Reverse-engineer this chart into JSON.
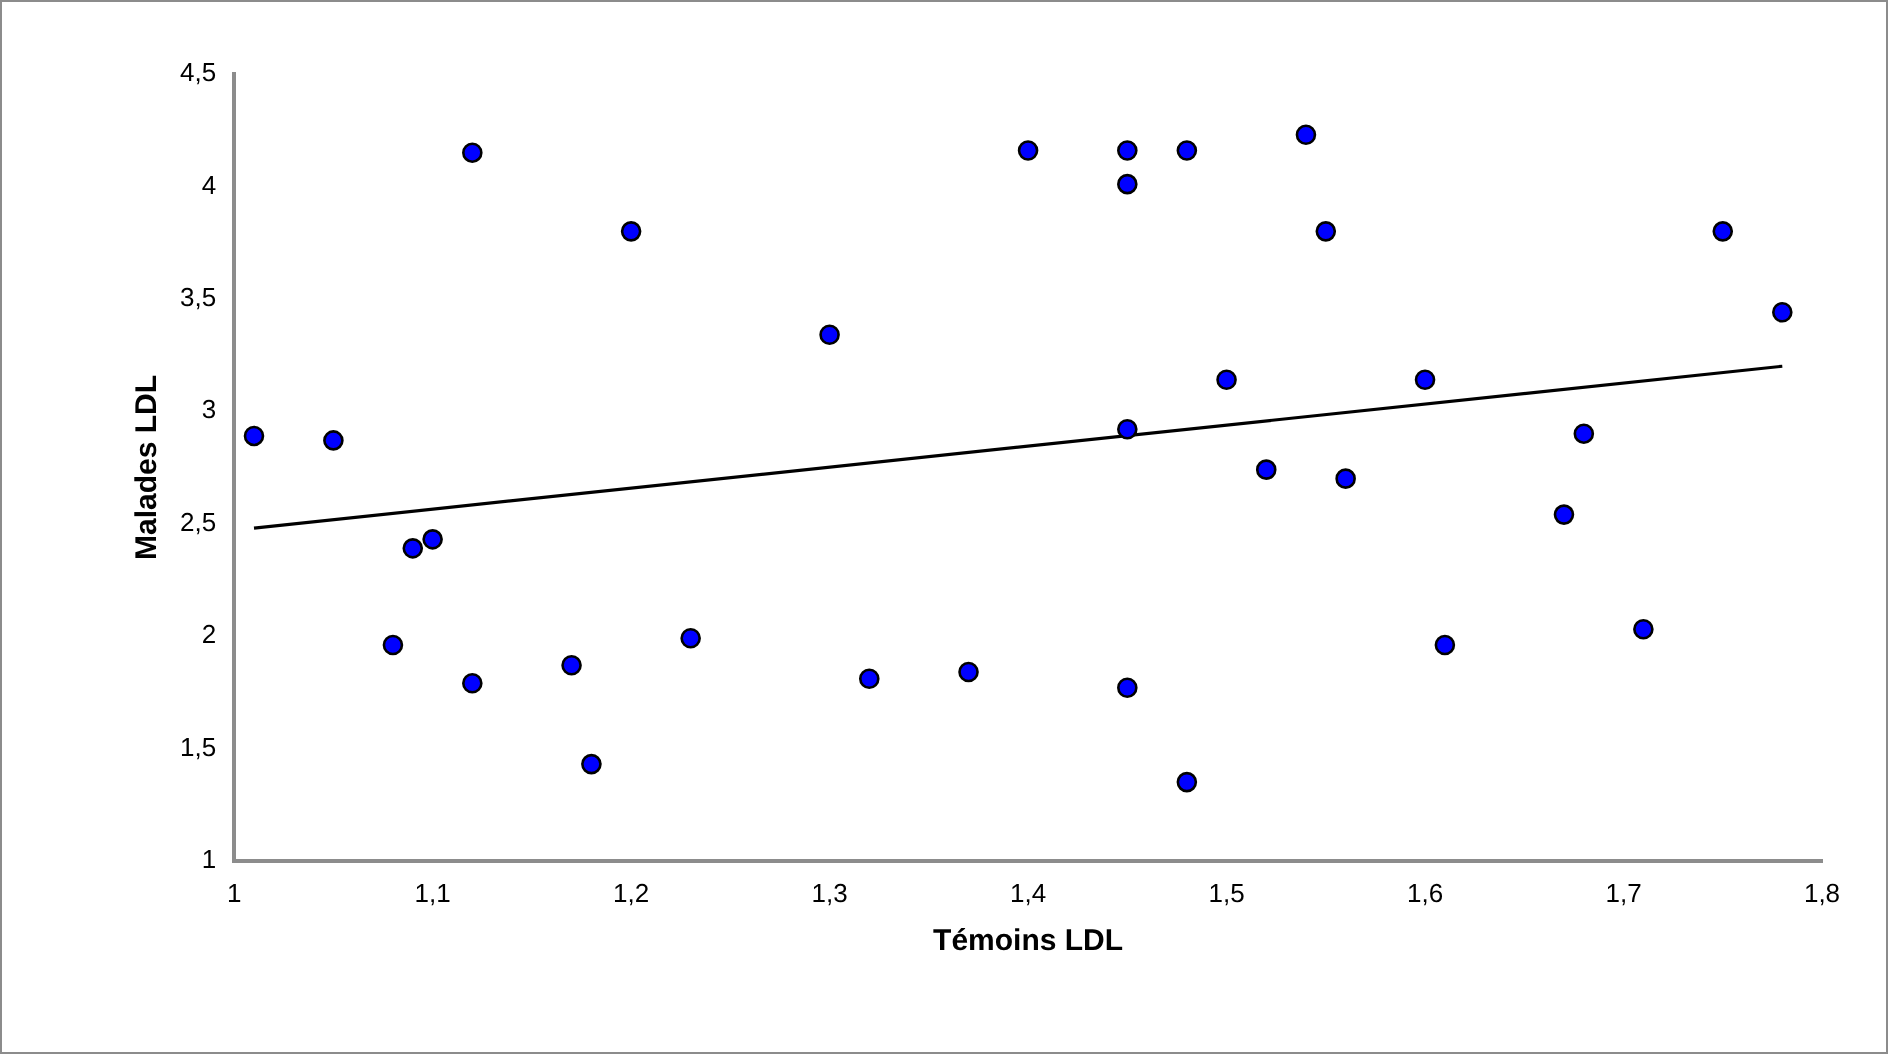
{
  "chart_data": {
    "type": "scatter",
    "xlabel": "Témoins LDL",
    "ylabel": "Malades LDL",
    "marker": "circle",
    "grid": false,
    "legend": false,
    "xlim": [
      1,
      1.8
    ],
    "xticks": [
      {
        "value": 1,
        "label": "1"
      },
      {
        "value": 1.1,
        "label": "1,1"
      },
      {
        "value": 1.2,
        "label": "1,2"
      },
      {
        "value": 1.3,
        "label": "1,3"
      },
      {
        "value": 1.4,
        "label": "1,4"
      },
      {
        "value": 1.5,
        "label": "1,5"
      },
      {
        "value": 1.6,
        "label": "1,6"
      },
      {
        "value": 1.7,
        "label": "1,7"
      },
      {
        "value": 1.8,
        "label": "1,8"
      }
    ],
    "ylim": [
      1,
      4.5
    ],
    "yticks": [
      {
        "value": 1,
        "label": "1"
      },
      {
        "value": 1.5,
        "label": "1,5"
      },
      {
        "value": 2,
        "label": "2"
      },
      {
        "value": 2.5,
        "label": "2,5"
      },
      {
        "value": 3,
        "label": "3"
      },
      {
        "value": 3.5,
        "label": "3,5"
      },
      {
        "value": 4,
        "label": "4"
      },
      {
        "value": 4.5,
        "label": "4,5"
      }
    ],
    "series": [
      {
        "color": "#0000ff",
        "x": [
          1.01,
          1.05,
          1.08,
          1.09,
          1.1,
          1.12,
          1.12,
          1.17,
          1.18,
          1.2,
          1.23,
          1.3,
          1.32,
          1.37,
          1.4,
          1.45,
          1.45,
          1.45,
          1.45,
          1.48,
          1.48,
          1.5,
          1.52,
          1.54,
          1.55,
          1.56,
          1.6,
          1.61,
          1.67,
          1.68,
          1.71,
          1.75,
          1.78
        ],
        "values": [
          2.89,
          2.87,
          1.96,
          2.39,
          2.43,
          4.15,
          1.79,
          1.87,
          1.43,
          3.8,
          1.99,
          3.34,
          1.81,
          1.84,
          4.16,
          4.16,
          4.01,
          2.92,
          1.77,
          4.16,
          1.35,
          3.14,
          2.74,
          4.23,
          3.8,
          2.7,
          3.14,
          1.96,
          2.54,
          2.9,
          2.03,
          3.8,
          3.44
        ]
      },
      {
        "type": "line",
        "color": "#000000",
        "marker": "none",
        "x": [
          1.01,
          1.78
        ],
        "values": [
          2.48,
          3.2
        ]
      }
    ]
  }
}
